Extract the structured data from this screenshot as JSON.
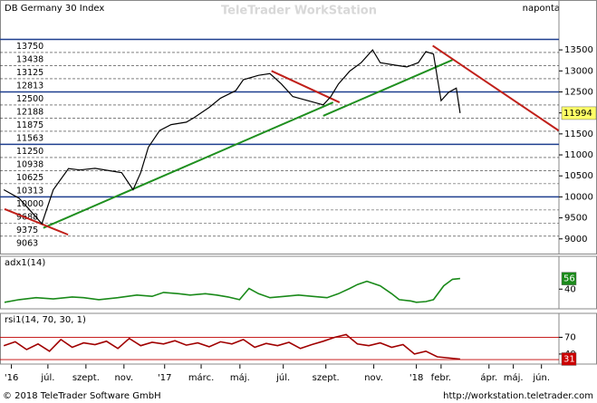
{
  "header": {
    "title": "DB Germany 30 Index",
    "watermark": "TeleTrader WorkStation",
    "interval": "naponta"
  },
  "chart_data": [
    {
      "type": "line",
      "color": "#000000",
      "x": [
        1,
        5,
        8,
        11,
        14,
        18,
        21,
        25,
        29,
        32,
        35,
        37,
        39,
        42,
        45,
        49,
        51,
        55,
        58,
        62,
        64,
        68,
        71,
        74,
        77,
        81,
        85,
        87,
        89,
        92,
        95,
        98,
        100,
        104,
        107,
        110,
        112,
        114,
        116,
        118,
        120,
        121
      ],
      "values": [
        10170,
        9970,
        9670,
        9360,
        10170,
        10675,
        10640,
        10680,
        10620,
        10575,
        10170,
        10575,
        11180,
        11580,
        11720,
        11780,
        11885,
        12130,
        12350,
        12530,
        12790,
        12895,
        12935,
        12690,
        12390,
        12290,
        12190,
        12390,
        12690,
        12995,
        13195,
        13500,
        13195,
        13135,
        13095,
        13195,
        13460,
        13400,
        12290,
        12490,
        12590,
        11994
      ],
      "last_box_color": "#ffff66",
      "xlim": [
        0,
        147
      ],
      "xticks": [
        {
          "value": 3,
          "label": "'16"
        },
        {
          "value": 12.6,
          "label": "júl."
        },
        {
          "value": 22.6,
          "label": "szept."
        },
        {
          "value": 32.6,
          "label": "nov."
        },
        {
          "value": 43.3,
          "label": "'17"
        },
        {
          "value": 52.9,
          "label": "márc."
        },
        {
          "value": 63.1,
          "label": "máj."
        },
        {
          "value": 74.5,
          "label": "júl."
        },
        {
          "value": 85.7,
          "label": "szept."
        },
        {
          "value": 98.3,
          "label": "nov."
        },
        {
          "value": 109.5,
          "label": "'18"
        },
        {
          "value": 116,
          "label": "febr."
        },
        {
          "value": 128.6,
          "label": "ápr."
        },
        {
          "value": 135,
          "label": "máj."
        },
        {
          "value": 142.4,
          "label": "jún."
        }
      ],
      "ylim": [
        8650,
        14300
      ],
      "yticks": [
        13500,
        13000,
        12500,
        12000,
        11500,
        11000,
        10500,
        10000,
        9500,
        9000
      ],
      "levels": [
        13750,
        13438,
        13125,
        12813,
        12500,
        12188,
        11875,
        11563,
        11250,
        10938,
        10625,
        10313,
        10000,
        9688,
        9375,
        9063
      ],
      "major_levels": [
        13750,
        12500,
        11250,
        10000
      ],
      "trendlines": [
        {
          "color": "#1f8f1f",
          "x": [
            11.4,
            87.6
          ],
          "y": [
            9260,
            12250
          ]
        },
        {
          "color": "#1f8f1f",
          "x": [
            85,
            119
          ],
          "y": [
            11930,
            13260
          ]
        },
        {
          "color": "#c0201a",
          "x": [
            1.2,
            17.9
          ],
          "y": [
            9710,
            9100
          ]
        },
        {
          "color": "#c0201a",
          "x": [
            71.4,
            89.3
          ],
          "y": [
            13000,
            12250
          ]
        },
        {
          "color": "#c0201a",
          "x": [
            113.8,
            146.9
          ],
          "y": [
            13600,
            11580
          ]
        }
      ]
    },
    {
      "type": "line",
      "title": "adx1(14)",
      "color": "#1a8a1a",
      "last_box_color": "#1a8a1a",
      "x": [
        1.2,
        5,
        9.5,
        14,
        19,
        22,
        26,
        31,
        36,
        40,
        43,
        47,
        50,
        54,
        57,
        60,
        63,
        65.5,
        68,
        71,
        75,
        78.5,
        82,
        86,
        89,
        92,
        94,
        96.5,
        100,
        103,
        105,
        108,
        109.5,
        112,
        114,
        116.7,
        119,
        121
      ],
      "values": [
        20,
        24,
        27,
        25,
        28,
        27,
        24,
        27,
        31,
        29,
        35,
        33,
        31,
        33,
        31,
        28,
        24,
        41,
        33,
        27,
        29,
        31,
        29,
        27,
        33,
        41,
        47,
        52,
        45,
        33,
        24,
        22,
        20,
        21,
        24,
        45,
        55,
        56
      ],
      "xlim": [
        0,
        147
      ],
      "ylim": [
        10,
        90
      ],
      "yticks": [
        40
      ]
    },
    {
      "type": "line",
      "title": "rsi1(14, 70, 30, 1)",
      "color": "#a00000",
      "last_box_color": "#cc0000",
      "x": [
        1,
        4,
        7,
        10,
        13,
        16,
        19,
        22,
        25,
        28,
        31,
        34,
        37,
        40,
        43,
        46,
        49,
        52,
        55,
        58,
        61,
        64,
        67,
        70,
        73,
        76,
        79,
        82,
        85,
        88,
        91,
        94,
        97,
        100,
        103,
        106,
        109,
        112,
        115,
        121
      ],
      "values": [
        55,
        62,
        48,
        58,
        45,
        66,
        52,
        60,
        57,
        63,
        50,
        68,
        55,
        61,
        58,
        64,
        56,
        60,
        53,
        62,
        58,
        66,
        52,
        59,
        55,
        61,
        50,
        57,
        63,
        70,
        75,
        58,
        55,
        60,
        52,
        57,
        40,
        45,
        35,
        31
      ],
      "bands": [
        70,
        30
      ],
      "xlim": [
        0,
        147
      ],
      "ylim": [
        22,
        113
      ],
      "yticks": [
        70,
        40
      ]
    }
  ],
  "footer": {
    "copyright": "© 2018 TeleTrader Software GmbH",
    "url": "http://workstation.teletrader.com"
  }
}
